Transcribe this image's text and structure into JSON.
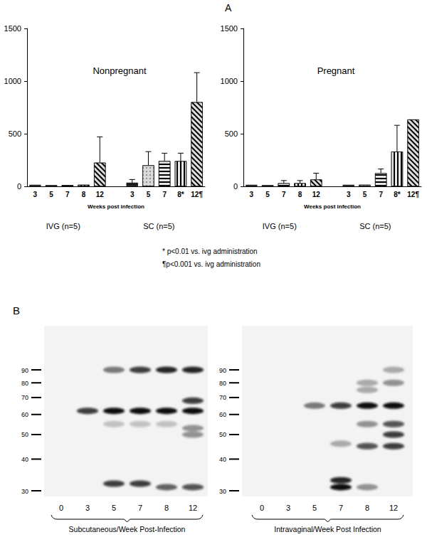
{
  "panel_labels": [
    "A",
    "B"
  ],
  "chart_data": [
    {
      "type": "bar",
      "title": "Nonpregnant",
      "xlabel": "Weeks post infection",
      "categories": [
        "3",
        "5",
        "7",
        "8",
        "12",
        null,
        "3",
        "5",
        "7",
        "8*",
        "12¶"
      ],
      "values": [
        15,
        12,
        12,
        15,
        225,
        null,
        35,
        200,
        240,
        240,
        800
      ],
      "errors": [
        null,
        null,
        null,
        null,
        245,
        null,
        30,
        130,
        75,
        75,
        280
      ],
      "colors": [
        "#1a1a1a",
        "#d9d9d9",
        "#e6e6e6",
        "#e6e6e6",
        "#dddddd",
        null,
        "#1a1a1a",
        "#d9d9d9",
        "#e6e6e6",
        "#e6e6e6",
        "#dddddd"
      ],
      "annotations": [
        "IVG (n=5)",
        "SC (n=5)"
      ],
      "ylim": [
        0,
        1500
      ],
      "yticks": [
        0,
        500,
        1000,
        1500
      ],
      "grid": false
    },
    {
      "type": "bar",
      "title": "Pregnant",
      "xlabel": "Weeks post infection",
      "categories": [
        "3",
        "5",
        "7",
        "8",
        "12",
        null,
        "3",
        "5",
        "7",
        "8*",
        "12¶"
      ],
      "values": [
        15,
        12,
        30,
        30,
        65,
        null,
        15,
        15,
        125,
        330,
        635
      ],
      "errors": [
        null,
        null,
        25,
        25,
        60,
        null,
        null,
        null,
        40,
        250,
        null
      ],
      "colors": [
        "#1a1a1a",
        "#d9d9d9",
        "#e6e6e6",
        "#e6e6e6",
        "#dddddd",
        null,
        "#1a1a1a",
        "#d9d9d9",
        "#e6e6e6",
        "#e6e6e6",
        "#dddddd"
      ],
      "annotations": [
        "IVG (n=5)",
        "SC (n=5)"
      ],
      "ylim": [
        0,
        1500
      ],
      "yticks": [
        0,
        500,
        1000,
        1500
      ],
      "grid": false
    }
  ],
  "footnotes": [
    "* p<0.01 vs. ivg administration",
    "¶p<0.001 vs. ivg administration"
  ],
  "blot": [
    {
      "caption": "Subcutaneous/Week Post-Infection",
      "markers": [
        90,
        80,
        70,
        60,
        50,
        40,
        30
      ],
      "lanes": [
        {
          "week": 0,
          "bands": []
        },
        {
          "week": 3,
          "bands": [
            {
              "kda": 62,
              "intensity": 0.8
            }
          ]
        },
        {
          "week": 5,
          "bands": [
            {
              "kda": 62,
              "intensity": 1.0
            },
            {
              "kda": 90,
              "intensity": 0.5
            },
            {
              "kda": 55,
              "intensity": 0.2
            },
            {
              "kda": 32,
              "intensity": 0.8
            }
          ]
        },
        {
          "week": 7,
          "bands": [
            {
              "kda": 62,
              "intensity": 1.0
            },
            {
              "kda": 90,
              "intensity": 0.8
            },
            {
              "kda": 55,
              "intensity": 0.2
            },
            {
              "kda": 32,
              "intensity": 0.8
            }
          ]
        },
        {
          "week": 8,
          "bands": [
            {
              "kda": 62,
              "intensity": 1.0
            },
            {
              "kda": 90,
              "intensity": 0.9
            },
            {
              "kda": 55,
              "intensity": 0.2
            },
            {
              "kda": 31,
              "intensity": 0.6
            }
          ]
        },
        {
          "week": 12,
          "bands": [
            {
              "kda": 62,
              "intensity": 1.0
            },
            {
              "kda": 68,
              "intensity": 0.8
            },
            {
              "kda": 90,
              "intensity": 0.9
            },
            {
              "kda": 53,
              "intensity": 0.4
            },
            {
              "kda": 50,
              "intensity": 0.4
            },
            {
              "kda": 31,
              "intensity": 0.7
            }
          ]
        }
      ]
    },
    {
      "caption": "Intravaginal/Week Post Infection",
      "markers": [
        90,
        80,
        70,
        60,
        50,
        40,
        30
      ],
      "lanes": [
        {
          "week": 0,
          "bands": []
        },
        {
          "week": 3,
          "bands": []
        },
        {
          "week": 5,
          "bands": [
            {
              "kda": 65,
              "intensity": 0.5
            }
          ]
        },
        {
          "week": 7,
          "bands": [
            {
              "kda": 65,
              "intensity": 0.8
            },
            {
              "kda": 46,
              "intensity": 0.3
            },
            {
              "kda": 33,
              "intensity": 0.9
            },
            {
              "kda": 31,
              "intensity": 1.0
            }
          ]
        },
        {
          "week": 8,
          "bands": [
            {
              "kda": 65,
              "intensity": 1.0
            },
            {
              "kda": 80,
              "intensity": 0.3
            },
            {
              "kda": 75,
              "intensity": 0.3
            },
            {
              "kda": 55,
              "intensity": 0.4
            },
            {
              "kda": 45,
              "intensity": 0.7
            },
            {
              "kda": 31,
              "intensity": 0.4
            }
          ]
        },
        {
          "week": 12,
          "bands": [
            {
              "kda": 65,
              "intensity": 1.0
            },
            {
              "kda": 90,
              "intensity": 0.3
            },
            {
              "kda": 80,
              "intensity": 0.4
            },
            {
              "kda": 55,
              "intensity": 0.7
            },
            {
              "kda": 50,
              "intensity": 0.8
            },
            {
              "kda": 45,
              "intensity": 0.8
            }
          ]
        }
      ]
    }
  ]
}
